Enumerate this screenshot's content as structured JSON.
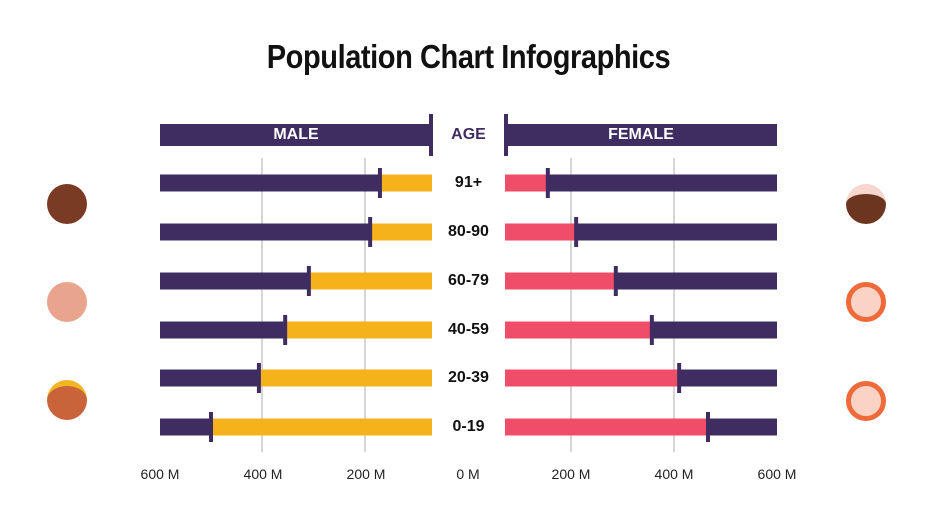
{
  "chart_data": {
    "type": "bar",
    "title": "Population Chart Infographics",
    "categories": [
      "91+",
      "80-90",
      "60-79",
      "40-59",
      "20-39",
      "0-19"
    ],
    "category_header": "AGE",
    "series": [
      {
        "name": "MALE",
        "values": [
          171,
          190,
          309,
          355,
          406,
          499
        ],
        "color": "#f6b21b",
        "track_color": "#3f2d62"
      },
      {
        "name": "FEMALE",
        "values": [
          155,
          210,
          287,
          357,
          410,
          466
        ],
        "color": "#ef4d68",
        "track_color": "#3f2d62"
      }
    ],
    "unit": "M",
    "xlim": [
      0,
      600
    ],
    "tick_labels_left": [
      "600 M",
      "400 M",
      "200 M"
    ],
    "tick_label_center": "0 M",
    "tick_labels_right": [
      "200 M",
      "400 M",
      "600 M"
    ],
    "grid": true,
    "orientation": "horizontal-butterfly"
  },
  "colors": {
    "purple": "#3f2d62",
    "yellow": "#f6b21b",
    "pink": "#ef4d68"
  }
}
